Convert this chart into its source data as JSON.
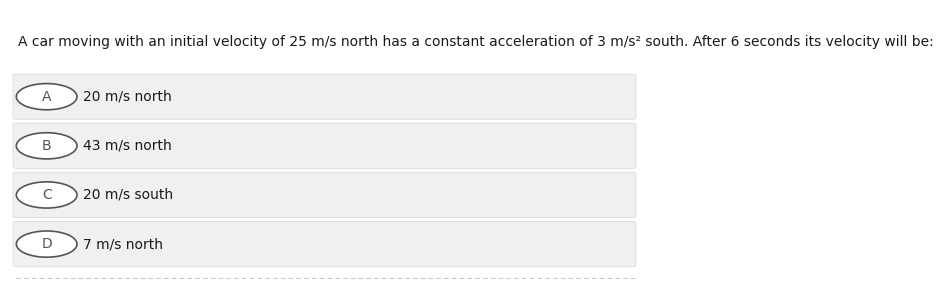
{
  "question": "A car moving with an initial velocity of 25 m/s north has a constant acceleration of 3 m/s² south. After 6 seconds its velocity will be:",
  "options": [
    {
      "label": "A",
      "text": "20 m/s north"
    },
    {
      "label": "B",
      "text": "43 m/s north"
    },
    {
      "label": "C",
      "text": "20 m/s south"
    },
    {
      "label": "D",
      "text": "7 m/s north"
    }
  ],
  "bg_color": "#ffffff",
  "option_box_color": "#f0f0f0",
  "option_box_edge_color": "#e0e0e0",
  "text_color": "#1a1a1a",
  "question_fontsize": 10,
  "option_fontsize": 10,
  "circle_color": "#555555",
  "bottom_line_color": "#c8c8c8"
}
